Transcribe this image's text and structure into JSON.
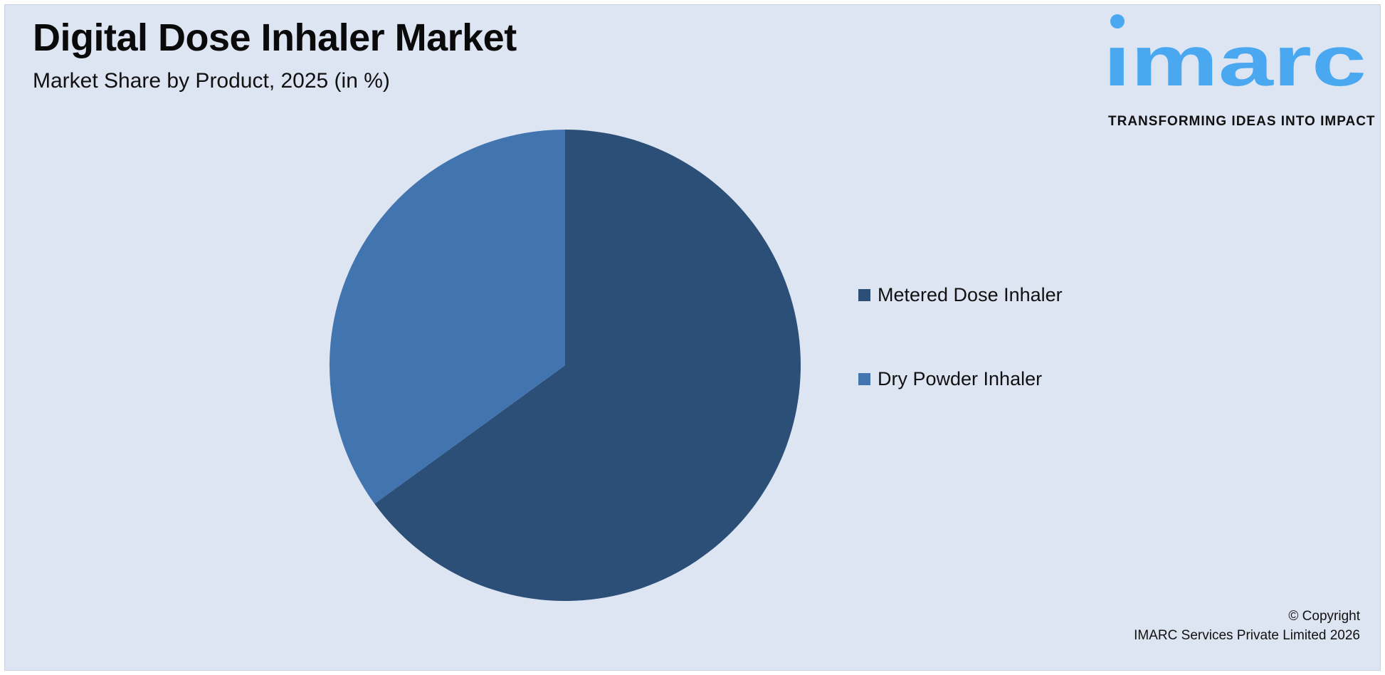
{
  "title": "Digital Dose Inhaler Market",
  "subtitle": "Market Share by Product, 2025 (in %)",
  "logo": {
    "text": "imarc",
    "tagline": "TRANSFORMING IDEAS INTO IMPACT",
    "color": "#4aa8f0"
  },
  "copyright": {
    "line1": "© Copyright",
    "line2": "IMARC Services Private Limited 2026"
  },
  "chart_data": {
    "type": "pie",
    "title": "Digital Dose Inhaler Market",
    "subtitle": "Market Share by Product, 2025 (in %)",
    "categories": [
      "Metered Dose Inhaler",
      "Dry Powder Inhaler"
    ],
    "values": [
      65,
      35
    ],
    "colors": [
      "#2c4f77",
      "#4274af"
    ],
    "start_angle": "12 o'clock, clockwise",
    "legend_position": "right"
  }
}
